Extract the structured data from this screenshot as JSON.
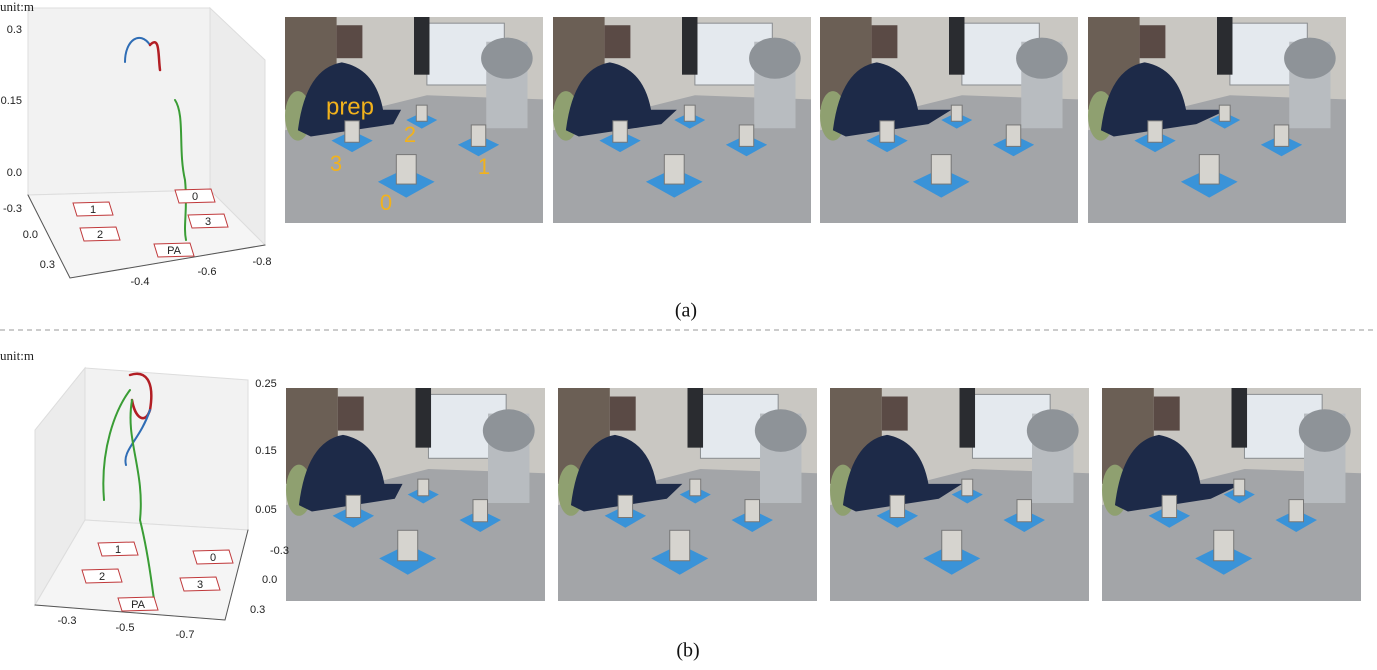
{
  "panels": [
    {
      "unit": "unit:m",
      "vertical_ticks": [
        "0.3",
        "0.15",
        "0.0"
      ],
      "depth_ticks": [
        "-0.3",
        "0.0",
        "0.3"
      ],
      "horizontal_ticks": [
        "-0.4",
        "-0.6",
        "-0.8"
      ],
      "regions": [
        "1",
        "0",
        "2",
        "3",
        "PA"
      ],
      "photo_labels": [
        "prep",
        "2",
        "3",
        "1",
        "0"
      ],
      "caption": "(a)"
    },
    {
      "unit": "unit:m",
      "vertical_ticks": [
        "0.25",
        "0.15",
        "0.05"
      ],
      "depth_ticks": [
        "-0.3",
        "0.0",
        "0.3"
      ],
      "horizontal_ticks": [
        "-0.3",
        "-0.5",
        "-0.7"
      ],
      "regions": [
        "1",
        "0",
        "2",
        "3",
        "PA"
      ],
      "caption": "(b)"
    }
  ]
}
